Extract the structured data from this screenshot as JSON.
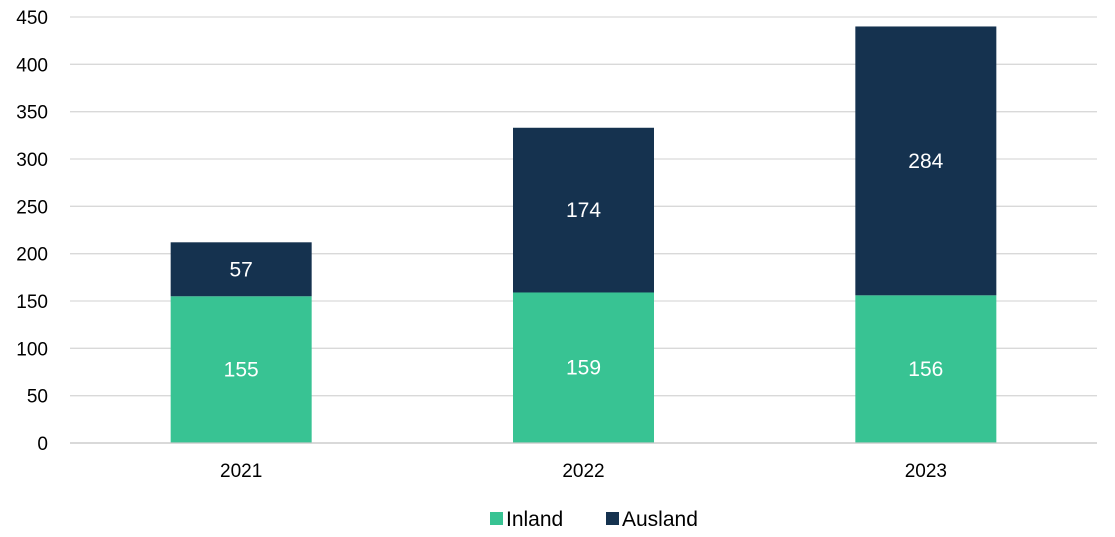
{
  "chart_data": {
    "type": "bar",
    "stacked": true,
    "categories": [
      "2021",
      "2022",
      "2023"
    ],
    "series": [
      {
        "name": "Inland",
        "values": [
          155,
          159,
          156
        ],
        "color": "#38c393"
      },
      {
        "name": "Ausland",
        "values": [
          57,
          174,
          284
        ],
        "color": "#15324f"
      }
    ],
    "ylim": [
      0,
      450
    ],
    "yticks": [
      0,
      50,
      100,
      150,
      200,
      250,
      300,
      350,
      400,
      450
    ],
    "grid": true,
    "gridline_color": "#d9d9d9",
    "legend_position": "bottom",
    "title": "",
    "xlabel": "",
    "ylabel": ""
  }
}
